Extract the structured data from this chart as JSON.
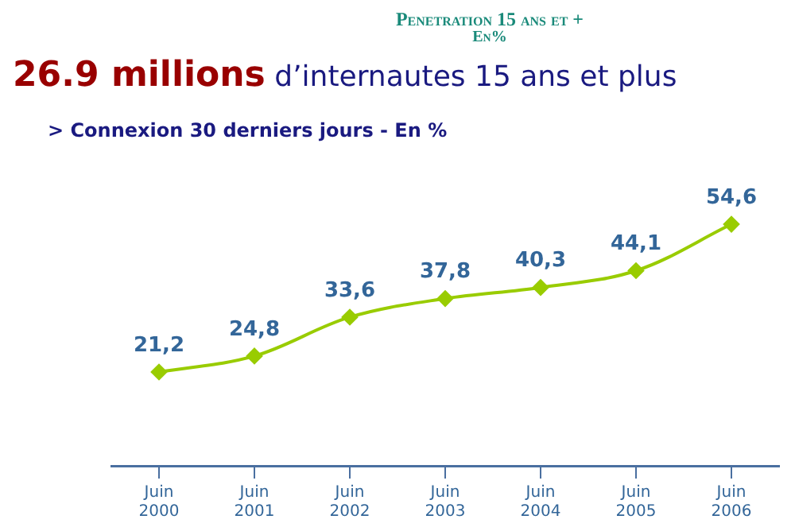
{
  "chart_data": {
    "type": "line",
    "title": "Penetration 15 ans et +\nEn%",
    "subtitle": "26.9 millions d’internautes 15 ans et plus",
    "annotations": [
      "> Connexion 30 derniers jours - En %"
    ],
    "categories": [
      "Juin 2000",
      "Juin 2001",
      "Juin 2002",
      "Juin 2003",
      "Juin 2004",
      "Juin 2005",
      "Juin 2006"
    ],
    "values": [
      21.2,
      24.8,
      33.6,
      37.8,
      40.3,
      44.1,
      54.6
    ],
    "value_labels": [
      "21,2",
      "24,8",
      "33,6",
      "37,8",
      "40,3",
      "44,1",
      "54,6"
    ],
    "color": "#99cc00",
    "marker": "diamond",
    "line_style": "solid",
    "grid": false,
    "legend": false,
    "tick_labels": "x"
  }
}
